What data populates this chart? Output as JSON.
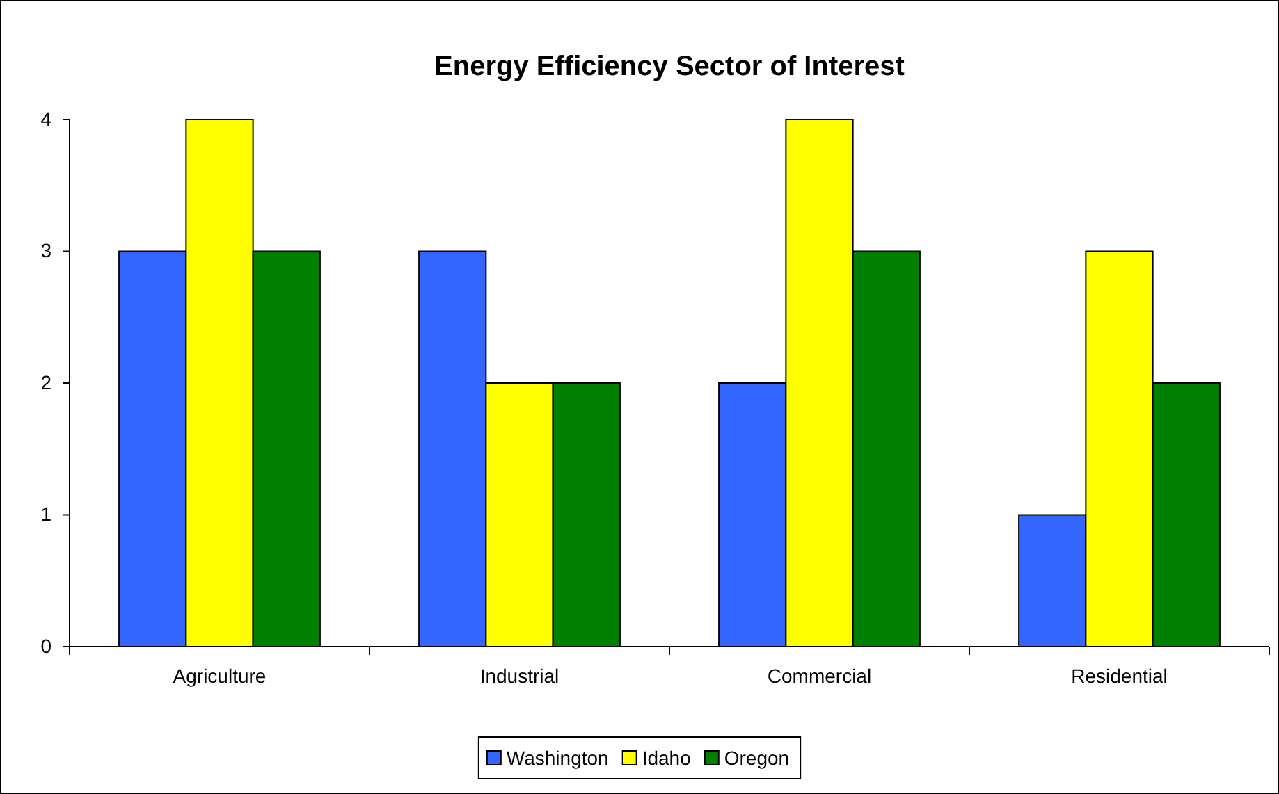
{
  "chart_data": {
    "type": "bar",
    "title": "Energy Efficiency Sector of Interest",
    "categories": [
      "Agriculture",
      "Industrial",
      "Commercial",
      "Residential"
    ],
    "series": [
      {
        "name": "Washington",
        "color": "#3366ff",
        "values": [
          3,
          3,
          2,
          1
        ]
      },
      {
        "name": "Idaho",
        "color": "#ffff00",
        "values": [
          4,
          2,
          4,
          3
        ]
      },
      {
        "name": "Oregon",
        "color": "#008000",
        "values": [
          3,
          2,
          3,
          2
        ]
      }
    ],
    "ylim": [
      0,
      4
    ],
    "yticks": [
      0,
      1,
      2,
      3,
      4
    ],
    "grid": false,
    "legend": "bottom"
  }
}
